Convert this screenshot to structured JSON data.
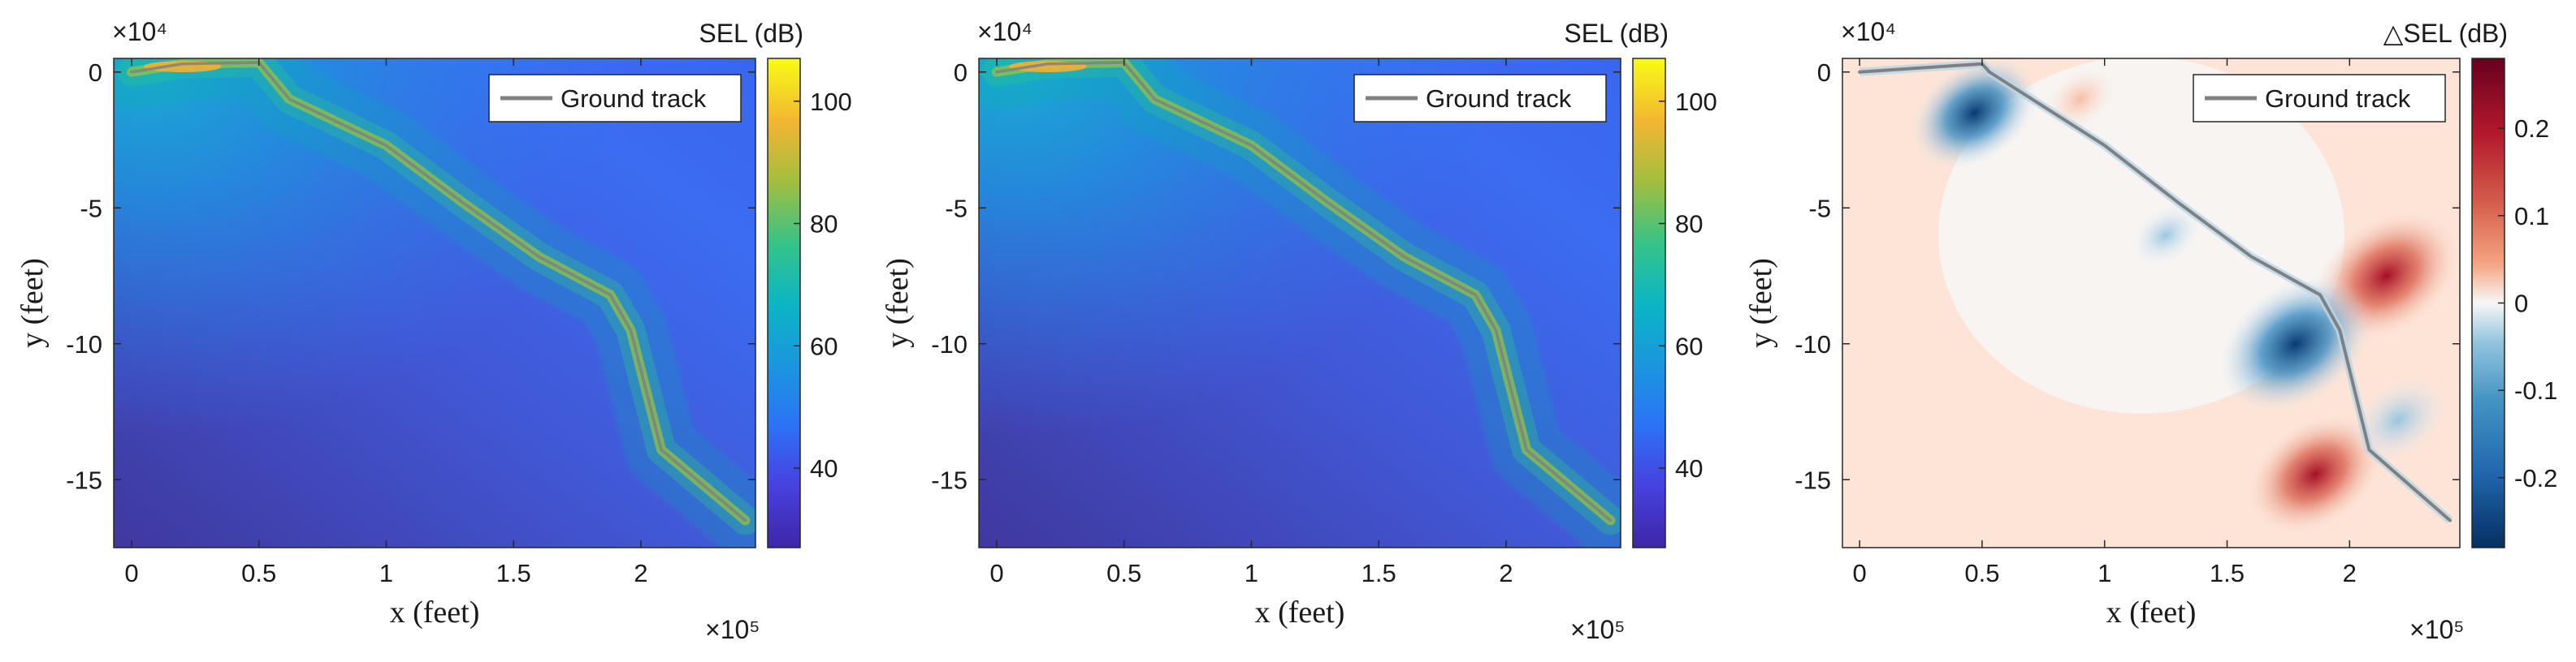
{
  "chart_data": [
    {
      "type": "heatmap",
      "title": "",
      "xlabel": "x (feet)",
      "ylabel": "y (feet)",
      "x_exponent_label": "×10⁵",
      "y_exponent_label": "×10⁴",
      "xlim": [
        -0.07,
        2.45
      ],
      "ylim": [
        -17.5,
        0.5
      ],
      "xticks": [
        0,
        0.5,
        1,
        1.5,
        2
      ],
      "xtick_labels": [
        "0",
        "0.5",
        "1",
        "1.5",
        "2"
      ],
      "yticks": [
        0,
        -5,
        -10,
        -15
      ],
      "ytick_labels": [
        "0",
        "-5",
        "-10",
        "-15"
      ],
      "colorbar": {
        "label": "SEL (dB)",
        "colormap": "parula",
        "range": [
          27,
          107
        ],
        "ticks": [
          40,
          60,
          80,
          100
        ],
        "tick_labels": [
          "40",
          "60",
          "80",
          "100"
        ]
      },
      "legend": {
        "entries": [
          "Ground track"
        ],
        "location": "top-right"
      },
      "track": {
        "name": "Ground track",
        "color": "#808080",
        "x": [
          0,
          0.2,
          0.5,
          0.62,
          1.0,
          1.3,
          1.6,
          1.88,
          1.96,
          2.08,
          2.41
        ],
        "y": [
          0,
          0.3,
          0.35,
          -1.0,
          -2.7,
          -4.8,
          -6.8,
          -8.2,
          -9.5,
          -13.9,
          -16.5
        ]
      }
    },
    {
      "type": "heatmap",
      "title": "",
      "xlabel": "x (feet)",
      "ylabel": "y (feet)",
      "x_exponent_label": "×10⁵",
      "y_exponent_label": "×10⁴",
      "xlim": [
        -0.07,
        2.45
      ],
      "ylim": [
        -17.5,
        0.5
      ],
      "xticks": [
        0,
        0.5,
        1,
        1.5,
        2
      ],
      "xtick_labels": [
        "0",
        "0.5",
        "1",
        "1.5",
        "2"
      ],
      "yticks": [
        0,
        -5,
        -10,
        -15
      ],
      "ytick_labels": [
        "0",
        "-5",
        "-10",
        "-15"
      ],
      "colorbar": {
        "label": "SEL (dB)",
        "colormap": "parula",
        "range": [
          27,
          107
        ],
        "ticks": [
          40,
          60,
          80,
          100
        ],
        "tick_labels": [
          "40",
          "60",
          "80",
          "100"
        ]
      },
      "legend": {
        "entries": [
          "Ground track"
        ],
        "location": "top-right"
      },
      "track": {
        "name": "Ground track",
        "color": "#808080",
        "x": [
          0,
          0.2,
          0.5,
          0.62,
          1.0,
          1.3,
          1.6,
          1.88,
          1.96,
          2.08,
          2.41
        ],
        "y": [
          0,
          0.3,
          0.35,
          -1.0,
          -2.7,
          -4.8,
          -6.8,
          -8.2,
          -9.5,
          -13.9,
          -16.5
        ]
      }
    },
    {
      "type": "heatmap",
      "title": "",
      "xlabel": "x (feet)",
      "ylabel": "y (feet)",
      "x_exponent_label": "×10⁵",
      "y_exponent_label": "×10⁴",
      "xlim": [
        -0.07,
        2.45
      ],
      "ylim": [
        -17.5,
        0.5
      ],
      "xticks": [
        0,
        0.5,
        1,
        1.5,
        2
      ],
      "xtick_labels": [
        "0",
        "0.5",
        "1",
        "1.5",
        "2"
      ],
      "yticks": [
        0,
        -5,
        -10,
        -15
      ],
      "ytick_labels": [
        "0",
        "-5",
        "-10",
        "-15"
      ],
      "colorbar": {
        "label": "△SEL (dB)",
        "colormap": "diverging red-white-blue",
        "range": [
          -0.28,
          0.28
        ],
        "ticks": [
          -0.2,
          -0.1,
          0,
          0.1,
          0.2
        ],
        "tick_labels": [
          "-0.2",
          "-0.1",
          "0",
          "0.1",
          "0.2"
        ]
      },
      "legend": {
        "entries": [
          "Ground track"
        ],
        "location": "top-right"
      },
      "track": {
        "name": "Ground track",
        "color": "#808080",
        "x": [
          0,
          0.5,
          0.53,
          1.0,
          1.3,
          1.6,
          1.88,
          1.96,
          2.08,
          2.41
        ],
        "y": [
          0,
          0.3,
          0,
          -2.7,
          -4.8,
          -6.8,
          -8.2,
          -9.5,
          -13.9,
          -16.5
        ]
      },
      "features": [
        {
          "kind": "negative",
          "x": 0.47,
          "y": -1.5,
          "value": -0.2
        },
        {
          "kind": "positive",
          "x": 2.15,
          "y": -7.5,
          "value": 0.25
        },
        {
          "kind": "negative",
          "x": 1.78,
          "y": -10.0,
          "value": -0.27
        },
        {
          "kind": "positive",
          "x": 1.86,
          "y": -14.8,
          "value": 0.22
        },
        {
          "kind": "negative",
          "x": 2.2,
          "y": -12.8,
          "value": -0.12
        },
        {
          "kind": "negative",
          "x": 1.25,
          "y": -6.0,
          "value": -0.05
        },
        {
          "kind": "positive",
          "x": 0.9,
          "y": -1.0,
          "value": 0.05
        }
      ]
    }
  ]
}
